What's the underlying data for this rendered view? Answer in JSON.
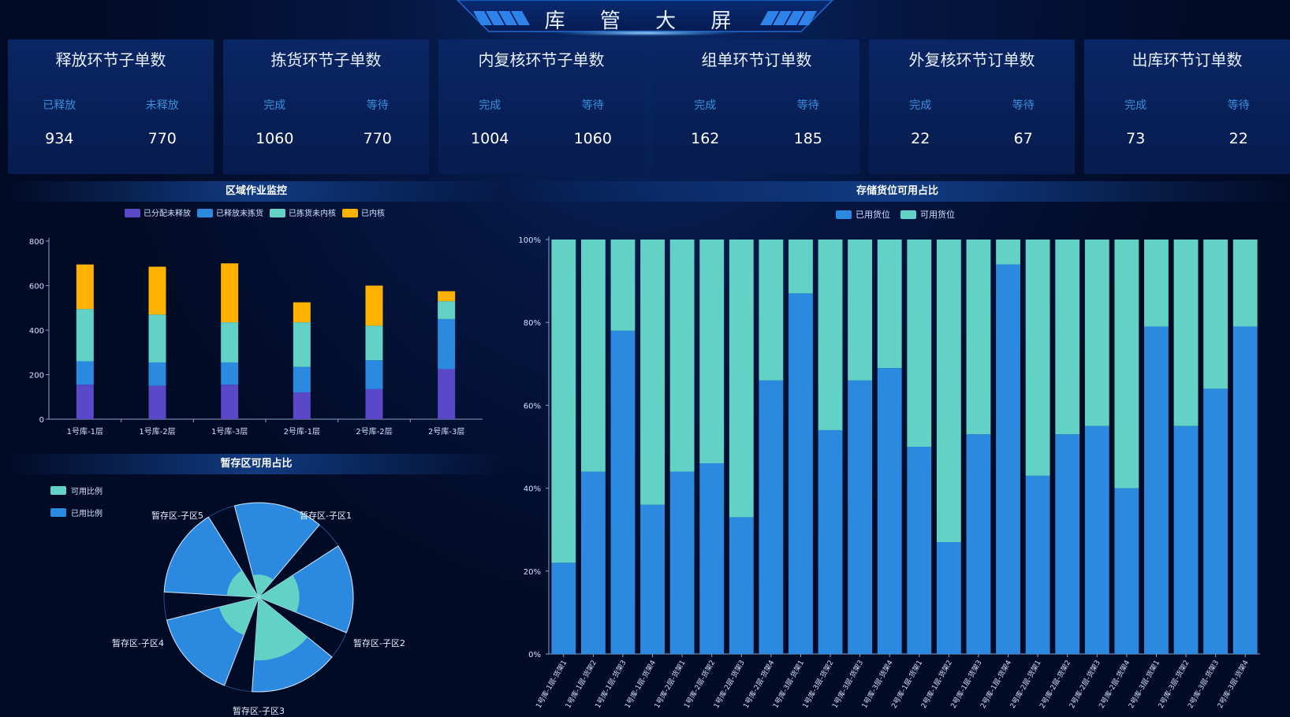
{
  "header": {
    "title": "库 管 大 屏"
  },
  "cards": [
    {
      "title": "释放环节子单数",
      "left_label": "已释放",
      "right_label": "未释放",
      "left_value": "934",
      "right_value": "770"
    },
    {
      "title": "拣货环节子单数",
      "left_label": "完成",
      "right_label": "等待",
      "left_value": "1060",
      "right_value": "770"
    },
    {
      "title": "内复核环节子单数",
      "left_label": "完成",
      "right_label": "等待",
      "left_value": "1004",
      "right_value": "1060"
    },
    {
      "title": "组单环节订单数",
      "left_label": "完成",
      "right_label": "等待",
      "left_value": "162",
      "right_value": "185"
    },
    {
      "title": "外复核环节订单数",
      "left_label": "完成",
      "right_label": "等待",
      "left_value": "22",
      "right_value": "67"
    },
    {
      "title": "出库环节订单数",
      "left_label": "完成",
      "right_label": "等待",
      "left_value": "73",
      "right_value": "22"
    }
  ],
  "colors": {
    "purple": "#5a48c8",
    "blue": "#2b8ae0",
    "teal": "#63d2c6",
    "yellow": "#ffb300"
  },
  "chart_data": [
    {
      "type": "bar",
      "stacked": true,
      "title": "区域作业监控",
      "categories": [
        "1号库-1层",
        "1号库-2层",
        "1号库-3层",
        "2号库-1层",
        "2号库-2层",
        "2号库-3层"
      ],
      "series": [
        {
          "name": "已分配未释放",
          "color": "#5a48c8",
          "values": [
            155,
            150,
            155,
            120,
            135,
            225
          ]
        },
        {
          "name": "已释放未拣货",
          "color": "#2b8ae0",
          "values": [
            105,
            105,
            100,
            115,
            130,
            225
          ]
        },
        {
          "name": "已拣货未内核",
          "color": "#63d2c6",
          "values": [
            235,
            215,
            180,
            200,
            155,
            80
          ]
        },
        {
          "name": "已内核",
          "color": "#ffb300",
          "values": [
            200,
            215,
            265,
            90,
            180,
            45
          ]
        }
      ],
      "yticks": [
        "0",
        "200",
        "400",
        "600",
        "800"
      ],
      "ylim": [
        0,
        800
      ],
      "legend": "top-center"
    },
    {
      "type": "pie",
      "subtype": "rose",
      "title": "暂存区可用占比",
      "categories": [
        "暂存区-子区1",
        "暂存区-子区2",
        "暂存区-子区3",
        "暂存区-子区4",
        "暂存区-子区5"
      ],
      "series": [
        {
          "name": "可用比例",
          "color": "#63d2c6",
          "values": [
            20,
            40,
            65,
            40,
            30
          ]
        },
        {
          "name": "已用比例",
          "color": "#2b8ae0",
          "values": [
            100,
            100,
            100,
            100,
            100
          ]
        }
      ],
      "legend": "top-left"
    },
    {
      "type": "bar",
      "stacked": true,
      "percent": true,
      "title": "存储货位可用占比",
      "categories": [
        "1号库-1层-货架1",
        "1号库-1层-货架2",
        "1号库-1层-货架3",
        "1号库-1层-货架4",
        "1号库-2层-货架1",
        "1号库-2层-货架2",
        "1号库-2层-货架3",
        "1号库-2层-货架4",
        "1号库-3层-货架1",
        "1号库-3层-货架2",
        "1号库-3层-货架3",
        "1号库-3层-货架4",
        "2号库-1层-货架1",
        "2号库-1层-货架2",
        "2号库-1层-货架3",
        "2号库-1层-货架4",
        "2号库-2层-货架1",
        "2号库-2层-货架2",
        "2号库-2层-货架3",
        "2号库-2层-货架4",
        "2号库-3层-货架1",
        "2号库-3层-货架2",
        "2号库-3层-货架3",
        "2号库-3层-货架4"
      ],
      "series": [
        {
          "name": "已用货位",
          "color": "#2b8ae0",
          "values": [
            22,
            44,
            78,
            36,
            44,
            46,
            33,
            66,
            87,
            54,
            66,
            69,
            50,
            27,
            53,
            94,
            43,
            53,
            55,
            40,
            79,
            55,
            64,
            79
          ]
        },
        {
          "name": "可用货位",
          "color": "#63d2c6",
          "values": [
            78,
            56,
            22,
            64,
            56,
            54,
            67,
            34,
            13,
            46,
            34,
            31,
            50,
            73,
            47,
            6,
            57,
            47,
            45,
            60,
            21,
            45,
            36,
            21
          ]
        }
      ],
      "yticks": [
        "0%",
        "20%",
        "40%",
        "60%",
        "80%",
        "100%"
      ],
      "ylim": [
        0,
        100
      ],
      "legend": "top-center"
    }
  ]
}
